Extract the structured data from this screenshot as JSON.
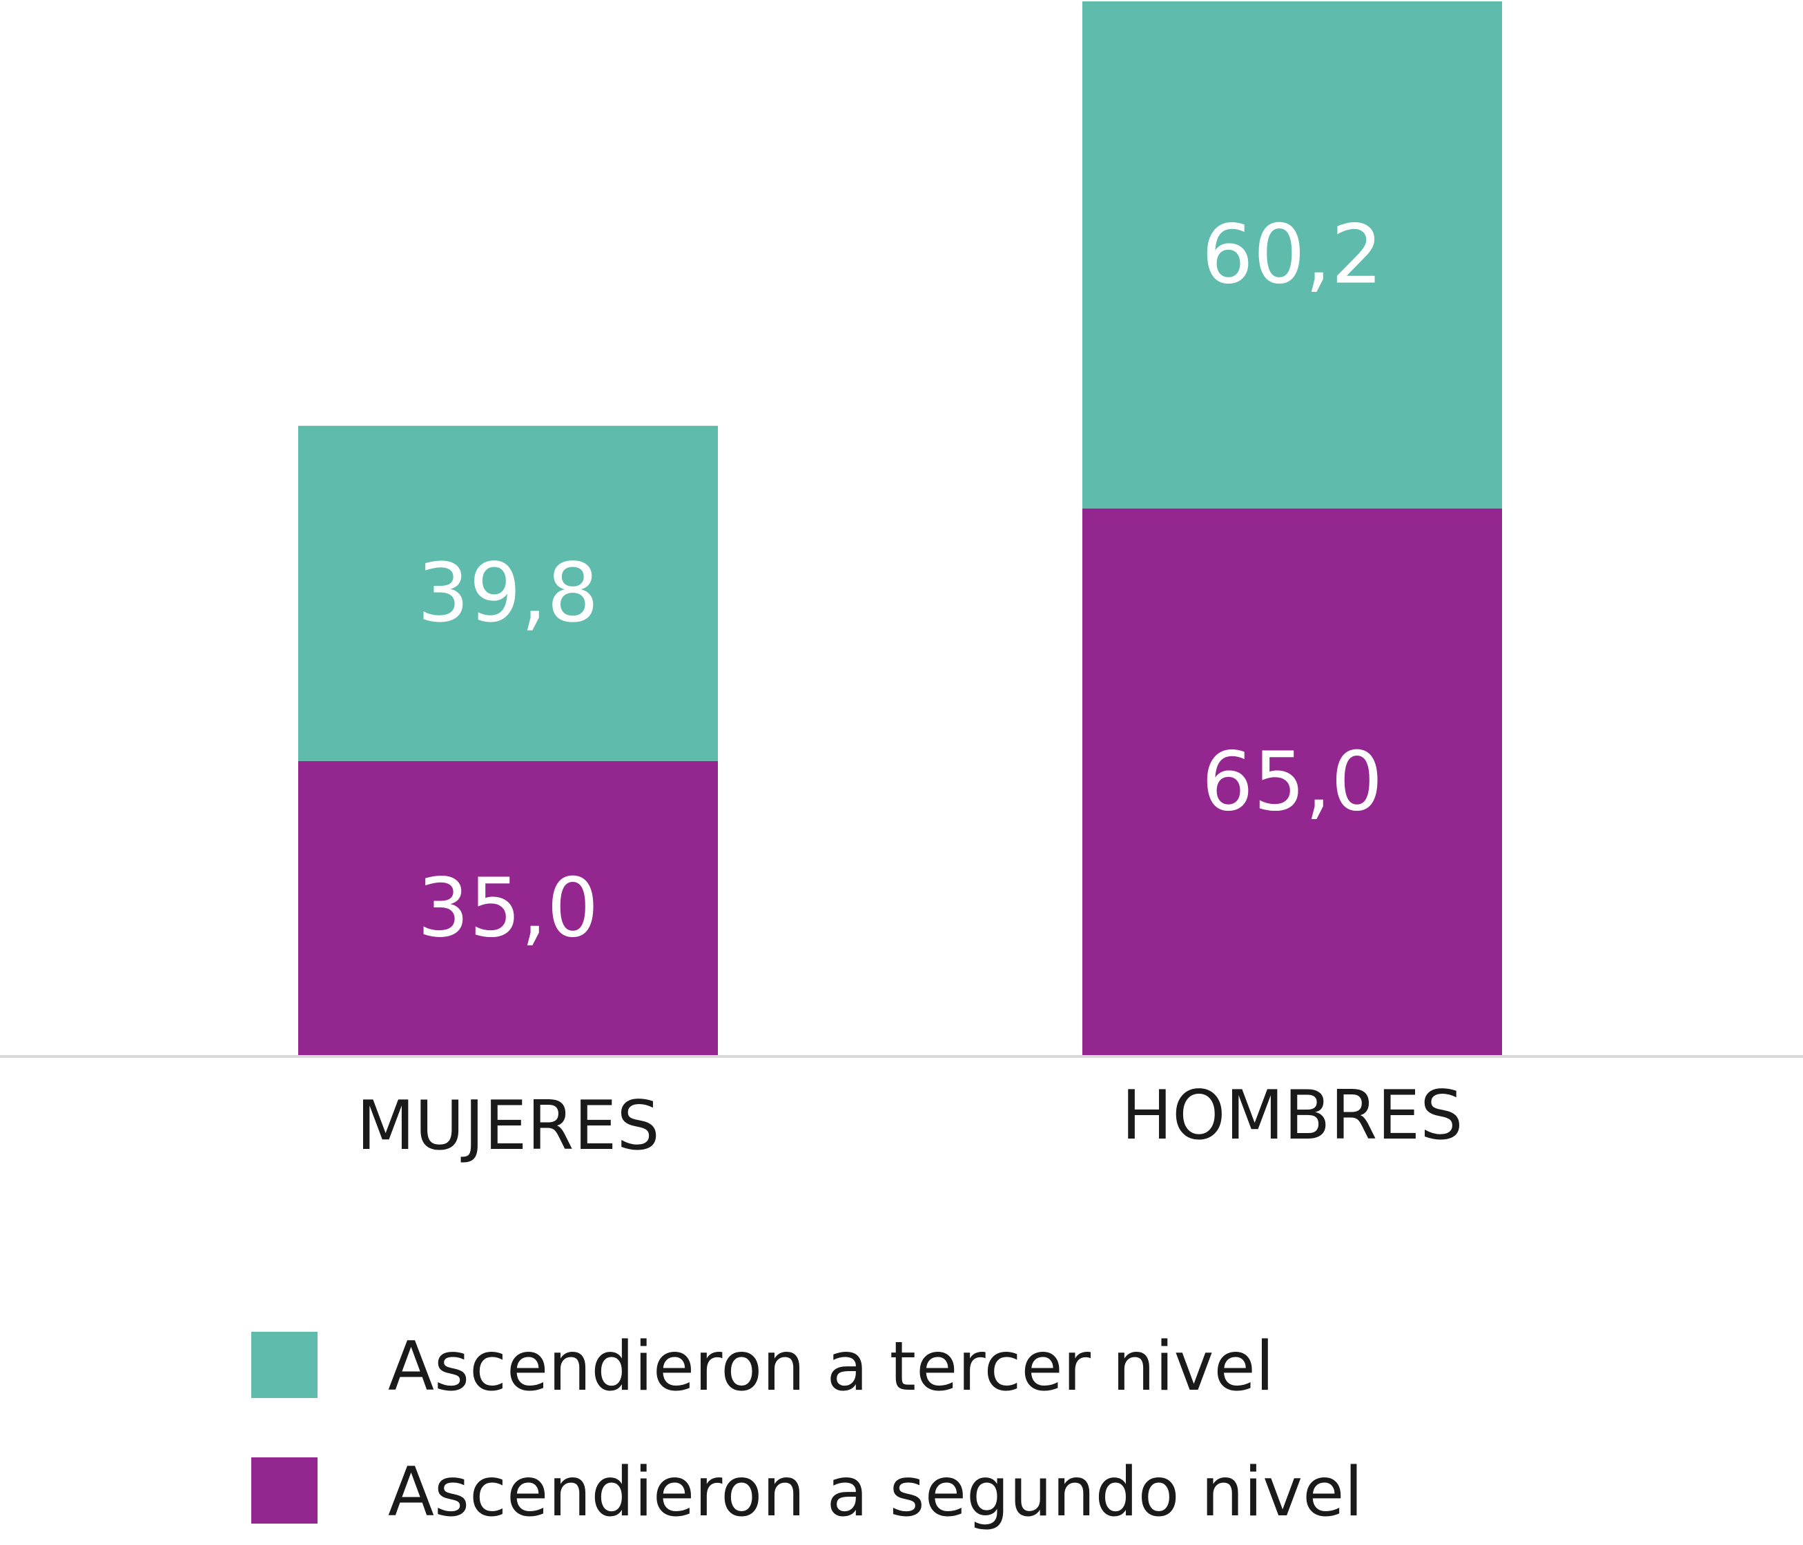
{
  "chart_data": {
    "type": "bar",
    "stacked": true,
    "title": "",
    "xlabel": "",
    "ylabel": "",
    "categories": [
      "MUJERES",
      "HOMBRES"
    ],
    "series": [
      {
        "name": "Ascendieron a segundo nivel",
        "color": "#93278f",
        "values": [
          35.0,
          65.0
        ],
        "labels": [
          "35,0",
          "65,0"
        ]
      },
      {
        "name": "Ascendieron a tercer nivel",
        "color": "#5fbbab",
        "values": [
          39.8,
          60.2
        ],
        "labels": [
          "39,8",
          "60,2"
        ]
      }
    ],
    "ylim": [
      0,
      125.2
    ],
    "grid": false,
    "legend": {
      "placement": "bottom-left",
      "items": [
        {
          "label": "Ascendieron a tercer nivel",
          "color": "#5fbbab"
        },
        {
          "label": "Ascendieron a segundo nivel",
          "color": "#93278f"
        }
      ]
    }
  },
  "colors": {
    "axis_line": "#d9d9d9",
    "category_text": "#1a1a1a",
    "value_text": "#ffffff",
    "legend_text": "#1a1a1a"
  }
}
